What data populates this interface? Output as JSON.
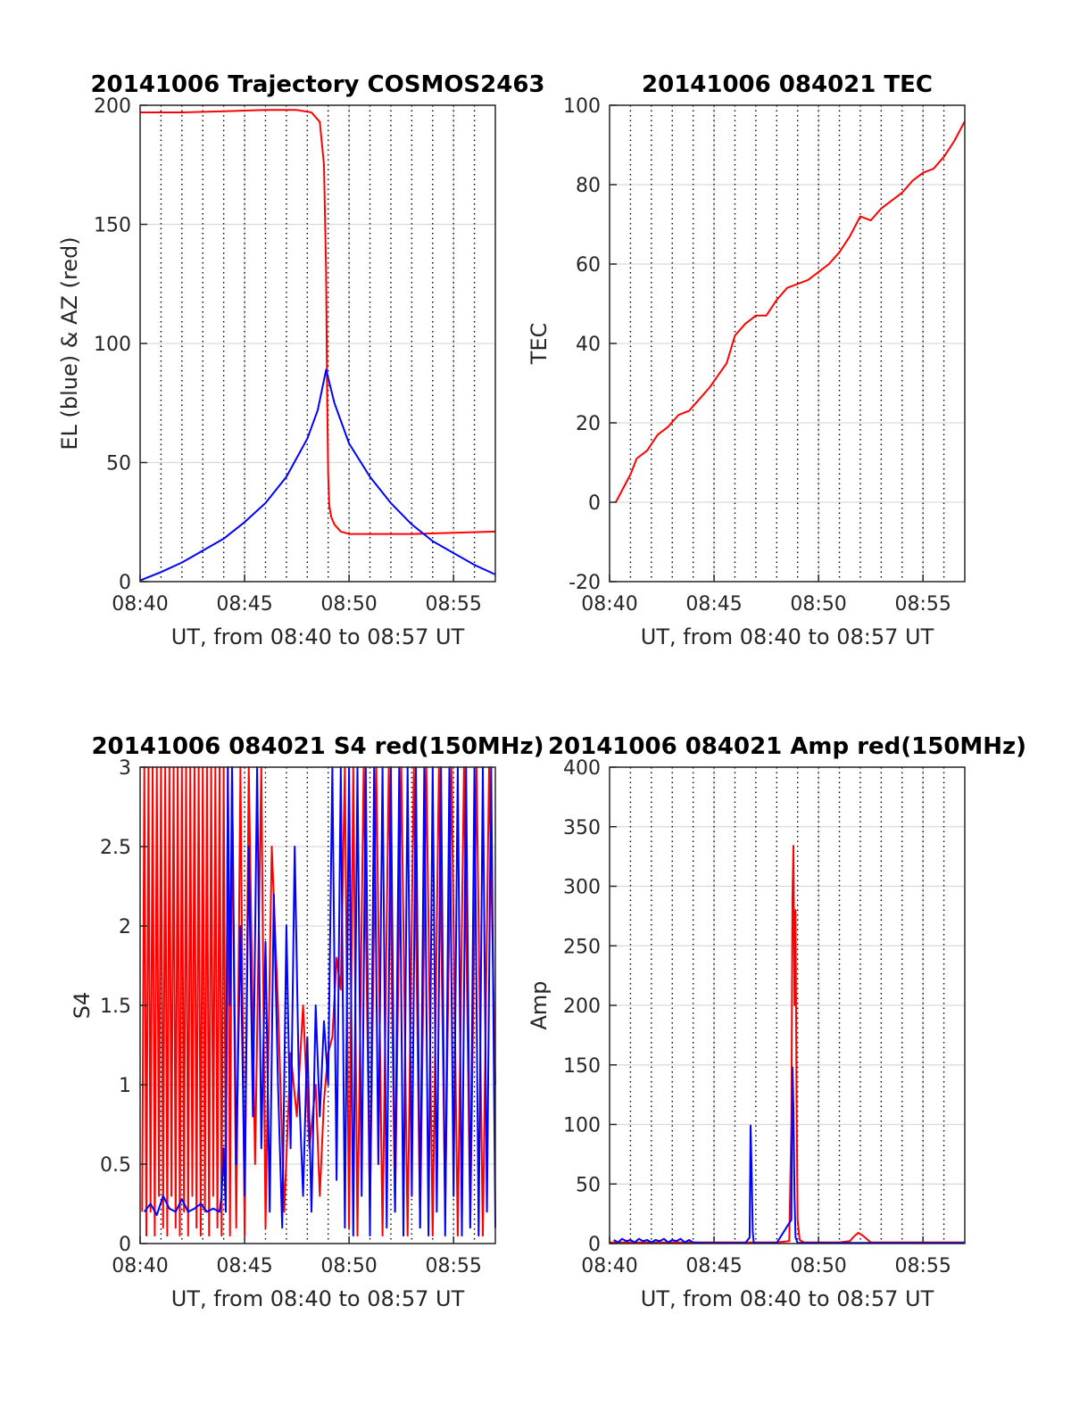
{
  "colors": {
    "red": "#ff0000",
    "blue": "#0000ff",
    "axis": "#262626",
    "grid": "#d9d9d9"
  },
  "chart_data": [
    {
      "id": "trajectory",
      "type": "line",
      "title": "20141006 Trajectory COSMOS2463",
      "xlabel": "UT, from 08:40 to 08:57 UT",
      "ylabel": "EL (blue) & AZ (red)",
      "xlim": [
        0,
        17
      ],
      "ylim": [
        0,
        200
      ],
      "xticks": [
        {
          "v": 0,
          "label": "08:40"
        },
        {
          "v": 5,
          "label": "08:45"
        },
        {
          "v": 10,
          "label": "08:50"
        },
        {
          "v": 15,
          "label": "08:55"
        }
      ],
      "yticks": [
        {
          "v": 0,
          "label": "0"
        },
        {
          "v": 50,
          "label": "50"
        },
        {
          "v": 100,
          "label": "100"
        },
        {
          "v": 150,
          "label": "150"
        },
        {
          "v": 200,
          "label": "200"
        }
      ],
      "grid": true,
      "series": [
        {
          "color": "red",
          "x": [
            0.0,
            2.0,
            4.0,
            6.0,
            7.5,
            8.2,
            8.6,
            8.8,
            8.9,
            8.95,
            9.0,
            9.05,
            9.15,
            9.3,
            9.6,
            10.0,
            11.0,
            13.0,
            15.0,
            17.0
          ],
          "y": [
            197,
            197,
            197.5,
            198,
            198,
            197,
            193,
            175,
            130,
            80,
            45,
            32,
            27,
            24,
            21,
            20,
            20,
            20,
            20.5,
            21
          ]
        },
        {
          "color": "blue",
          "x": [
            0,
            1,
            2,
            3,
            4,
            5,
            6,
            7,
            8,
            8.5,
            8.9,
            9.3,
            10,
            11,
            12,
            13,
            14,
            15,
            16,
            17
          ],
          "y": [
            0.5,
            4,
            8,
            13,
            18,
            25,
            33,
            44,
            60,
            72,
            89,
            75,
            58,
            44,
            33,
            24,
            17,
            12,
            7,
            3
          ]
        }
      ]
    },
    {
      "id": "tec",
      "type": "line",
      "title": "20141006 084021 TEC",
      "xlabel": "UT, from 08:40 to 08:57 UT",
      "ylabel": "TEC",
      "xlim": [
        0,
        17
      ],
      "ylim": [
        -20,
        100
      ],
      "xticks": [
        {
          "v": 0,
          "label": "08:40"
        },
        {
          "v": 5,
          "label": "08:45"
        },
        {
          "v": 10,
          "label": "08:50"
        },
        {
          "v": 15,
          "label": "08:55"
        }
      ],
      "yticks": [
        {
          "v": -20,
          "label": "-20"
        },
        {
          "v": 0,
          "label": "0"
        },
        {
          "v": 20,
          "label": "20"
        },
        {
          "v": 40,
          "label": "40"
        },
        {
          "v": 60,
          "label": "60"
        },
        {
          "v": 80,
          "label": "80"
        },
        {
          "v": 100,
          "label": "100"
        }
      ],
      "grid": true,
      "series": [
        {
          "color": "red",
          "x": [
            0.3,
            0.6,
            1.0,
            1.3,
            1.8,
            2.3,
            2.8,
            3.3,
            3.8,
            4.3,
            4.8,
            5.2,
            5.6,
            6.0,
            6.5,
            7.0,
            7.5,
            8.0,
            8.5,
            9.0,
            9.5,
            10.0,
            10.5,
            11.0,
            11.5,
            12.0,
            12.5,
            13.0,
            13.5,
            14.0,
            14.5,
            15.0,
            15.5,
            16.0,
            16.5,
            17.0
          ],
          "y": [
            0,
            3,
            7,
            11,
            13,
            17,
            19,
            22,
            23,
            26,
            29,
            32,
            35,
            42,
            45,
            47,
            47,
            51,
            54,
            55,
            56,
            58,
            60,
            63,
            67,
            72,
            71,
            74,
            76,
            78,
            81,
            83,
            84,
            87,
            91,
            96
          ]
        }
      ]
    },
    {
      "id": "s4",
      "type": "line",
      "title": "20141006 084021 S4 red(150MHz)",
      "xlabel": "UT, from 08:40 to 08:57 UT",
      "ylabel": "S4",
      "xlim": [
        0,
        17
      ],
      "ylim": [
        0,
        3
      ],
      "xticks": [
        {
          "v": 0,
          "label": "08:40"
        },
        {
          "v": 5,
          "label": "08:45"
        },
        {
          "v": 10,
          "label": "08:50"
        },
        {
          "v": 15,
          "label": "08:55"
        }
      ],
      "yticks": [
        {
          "v": 0,
          "label": "0"
        },
        {
          "v": 0.5,
          "label": "0.5"
        },
        {
          "v": 1,
          "label": "1"
        },
        {
          "v": 1.5,
          "label": "1.5"
        },
        {
          "v": 2,
          "label": "2"
        },
        {
          "v": 2.5,
          "label": "2.5"
        },
        {
          "v": 3,
          "label": "3"
        }
      ],
      "grid": true,
      "series": [
        {
          "color": "red",
          "x": [
            0.1,
            0.2,
            0.3,
            0.4,
            0.5,
            0.6,
            0.7,
            0.8,
            0.9,
            1.0,
            1.1,
            1.2,
            1.3,
            1.4,
            1.5,
            1.6,
            1.7,
            1.8,
            1.9,
            2.0,
            2.1,
            2.2,
            2.3,
            2.4,
            2.5,
            2.6,
            2.7,
            2.8,
            2.9,
            3.0,
            3.1,
            3.2,
            3.3,
            3.4,
            3.5,
            3.6,
            3.7,
            3.8,
            3.9,
            4.0,
            4.1,
            4.2,
            4.3,
            4.4,
            4.6,
            4.8,
            5.0,
            5.2,
            5.5,
            5.8,
            6.0,
            6.3,
            6.6,
            6.9,
            7.2,
            7.5,
            7.8,
            8.1,
            8.4,
            8.6,
            8.8,
            9.0,
            9.2,
            9.4,
            9.6,
            9.8,
            10.0,
            10.2,
            10.4,
            10.7,
            11.0,
            11.3,
            11.6,
            11.9,
            12.2,
            12.5,
            12.8,
            13.1,
            13.4,
            13.7,
            14.0,
            14.3,
            14.6,
            14.9,
            15.2,
            15.5,
            15.8,
            16.1,
            16.4,
            16.7,
            17.0
          ],
          "y": [
            0.2,
            3,
            0.05,
            3,
            0.2,
            3,
            0.05,
            3,
            0.3,
            3,
            0.1,
            3,
            0.05,
            3,
            0.3,
            3,
            0.1,
            3,
            0.05,
            3,
            0.2,
            3,
            0.05,
            3,
            0.3,
            3,
            0.1,
            3,
            0.05,
            3,
            0.2,
            3,
            0.05,
            3,
            0.3,
            3,
            0.1,
            3,
            0.05,
            3,
            0.2,
            3,
            0.05,
            3,
            0.1,
            3,
            0.05,
            3,
            0.5,
            3,
            0.1,
            2.5,
            1.5,
            0.2,
            1.2,
            0.8,
            1.5,
            0.6,
            1.0,
            0.3,
            0.9,
            1.2,
            1.3,
            1.8,
            1.6,
            3,
            0.1,
            3,
            0.05,
            3,
            0.2,
            3,
            0.05,
            3,
            0.2,
            3,
            0.05,
            3,
            0.1,
            3,
            0.05,
            3,
            0.2,
            3,
            0.05,
            3,
            0.1,
            3,
            0.05,
            3,
            1.0
          ]
        },
        {
          "color": "blue",
          "x": [
            0.2,
            0.5,
            0.8,
            1.1,
            1.4,
            1.7,
            2.0,
            2.3,
            2.6,
            2.9,
            3.2,
            3.5,
            3.8,
            3.9,
            4.0,
            4.1,
            4.2,
            4.3,
            4.4,
            4.6,
            4.8,
            5.0,
            5.2,
            5.4,
            5.6,
            5.8,
            6.0,
            6.2,
            6.4,
            6.6,
            6.8,
            7.0,
            7.2,
            7.4,
            7.6,
            7.8,
            8.0,
            8.2,
            8.4,
            8.6,
            8.8,
            9.0,
            9.2,
            9.4,
            9.6,
            9.8,
            10.0,
            10.2,
            10.4,
            10.6,
            10.8,
            11.0,
            11.2,
            11.4,
            11.6,
            11.8,
            12.0,
            12.2,
            12.4,
            12.6,
            12.8,
            13.0,
            13.2,
            13.4,
            13.6,
            13.8,
            14.0,
            14.2,
            14.4,
            14.6,
            14.8,
            15.0,
            15.2,
            15.4,
            15.6,
            15.8,
            16.0,
            16.2,
            16.4,
            16.6,
            16.8,
            17.0
          ],
          "y": [
            0.2,
            0.25,
            0.18,
            0.3,
            0.22,
            0.2,
            0.28,
            0.2,
            0.22,
            0.25,
            0.2,
            0.22,
            0.2,
            0.3,
            0.6,
            0.2,
            3,
            1.5,
            3,
            0.5,
            2.0,
            0.3,
            2.5,
            0.8,
            3,
            0.6,
            1.9,
            0.2,
            2.2,
            1.0,
            0.1,
            2.0,
            0.6,
            2.5,
            1.0,
            0.3,
            1.3,
            0.2,
            1.5,
            0.8,
            1.4,
            1.0,
            3,
            0.4,
            3,
            0.1,
            3,
            0.05,
            3,
            0.3,
            3,
            0.05,
            3,
            0.5,
            3,
            0.1,
            3,
            0.2,
            3,
            0.05,
            3,
            0.3,
            3,
            0.1,
            3,
            0.05,
            3,
            0.2,
            3,
            0.05,
            3,
            0.3,
            3,
            0.05,
            3,
            0.1,
            3,
            0.05,
            3,
            0.2,
            3,
            0.1
          ]
        }
      ]
    },
    {
      "id": "amp",
      "type": "line",
      "title": "20141006 084021 Amp red(150MHz)",
      "xlabel": "UT, from 08:40 to 08:57 UT",
      "ylabel": "Amp",
      "xlim": [
        0,
        17
      ],
      "ylim": [
        0,
        400
      ],
      "xticks": [
        {
          "v": 0,
          "label": "08:40"
        },
        {
          "v": 5,
          "label": "08:45"
        },
        {
          "v": 10,
          "label": "08:50"
        },
        {
          "v": 15,
          "label": "08:55"
        }
      ],
      "yticks": [
        {
          "v": 0,
          "label": "0"
        },
        {
          "v": 50,
          "label": "50"
        },
        {
          "v": 100,
          "label": "100"
        },
        {
          "v": 150,
          "label": "150"
        },
        {
          "v": 200,
          "label": "200"
        },
        {
          "v": 250,
          "label": "250"
        },
        {
          "v": 300,
          "label": "300"
        },
        {
          "v": 350,
          "label": "350"
        },
        {
          "v": 400,
          "label": "400"
        }
      ],
      "grid": true,
      "series": [
        {
          "color": "red",
          "x": [
            0.0,
            3.0,
            6.0,
            8.0,
            8.6,
            8.7,
            8.75,
            8.8,
            8.85,
            8.9,
            8.95,
            9.0,
            9.1,
            9.3,
            10.0,
            11.0,
            11.5,
            11.7,
            11.9,
            12.1,
            12.3,
            12.5,
            13.0,
            15.0,
            17.0
          ],
          "y": [
            1,
            1,
            1,
            1,
            2,
            100,
            290,
            334,
            200,
            280,
            120,
            20,
            3,
            1,
            1,
            1,
            2,
            6,
            9,
            7,
            4,
            1,
            1,
            1,
            1
          ]
        },
        {
          "color": "blue",
          "x": [
            0.2,
            0.4,
            0.6,
            0.8,
            1.0,
            1.2,
            1.4,
            1.6,
            1.8,
            2.0,
            2.2,
            2.4,
            2.6,
            2.8,
            3.0,
            3.2,
            3.4,
            3.6,
            3.8,
            4.0,
            4.5,
            5.5,
            6.5,
            6.7,
            6.75,
            6.8,
            6.85,
            6.9,
            7.0,
            8.0,
            8.7,
            8.75,
            8.8,
            8.85,
            8.9,
            9.0,
            9.5,
            11.0,
            13.0,
            15.0,
            17.0
          ],
          "y": [
            3,
            1,
            4,
            2,
            3,
            1,
            4,
            2,
            3,
            1,
            3,
            2,
            4,
            1,
            3,
            2,
            4,
            1,
            3,
            1,
            0.5,
            0.5,
            0.5,
            5,
            99,
            60,
            10,
            1,
            0.5,
            0.5,
            20,
            148,
            115,
            40,
            5,
            0.5,
            0.5,
            0.5,
            0.5,
            0.5,
            0.5
          ]
        }
      ]
    }
  ]
}
